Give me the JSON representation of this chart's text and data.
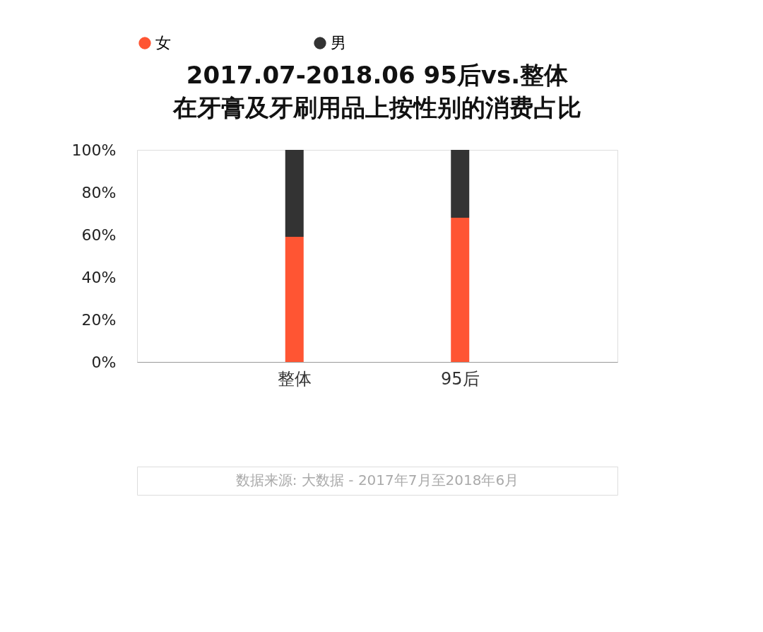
{
  "chart_data": {
    "type": "bar",
    "stacked": true,
    "title": "2017.07-2018.06 95后vs.整体",
    "subtitle": "在牙膏及牙刷用品上按性别的消费占比",
    "categories": [
      "整体",
      "95后"
    ],
    "series": [
      {
        "name": "女",
        "color": "#ff5533",
        "values": [
          59,
          68
        ]
      },
      {
        "name": "男",
        "color": "#333333",
        "values": [
          41,
          32
        ]
      }
    ],
    "ylim": [
      0,
      100
    ],
    "yticks": [
      {
        "value": 0,
        "label": "0%"
      },
      {
        "value": 20,
        "label": "20%"
      },
      {
        "value": 40,
        "label": "40%"
      },
      {
        "value": 60,
        "label": "60%"
      },
      {
        "value": 80,
        "label": "80%"
      },
      {
        "value": 100,
        "label": "100%"
      }
    ],
    "grid": false,
    "legend": "top",
    "annotations": [
      "数据来源: 大数据 - 2017年7月至2018年6月"
    ]
  }
}
